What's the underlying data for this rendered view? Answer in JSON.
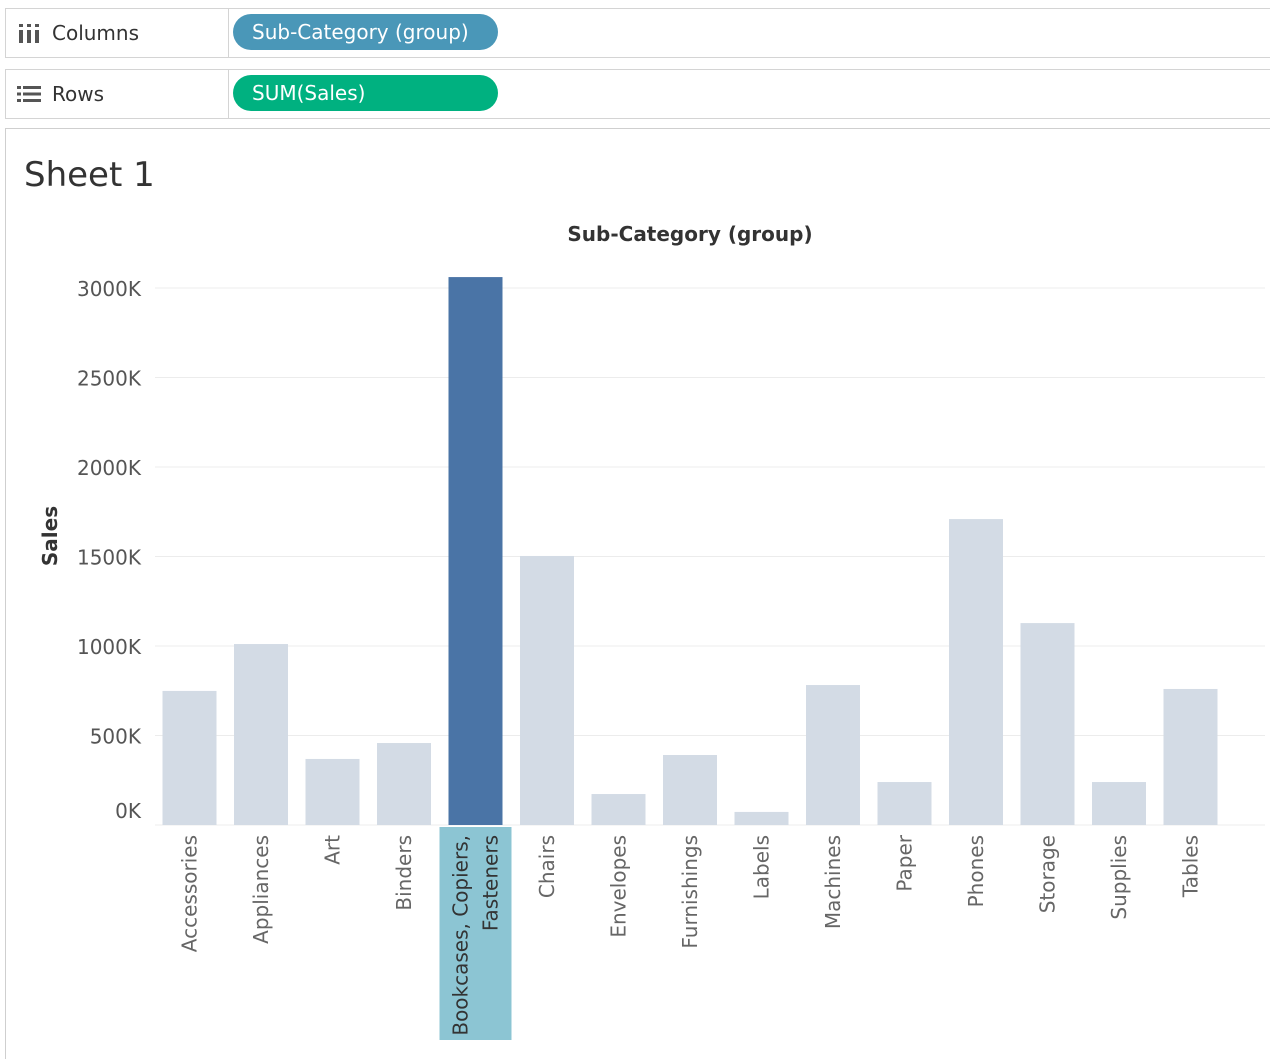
{
  "shelves": {
    "columns": {
      "label": "Columns",
      "icon": "columns-icon",
      "pill": "Sub-Category (group)",
      "pill_color": "#4a97b8"
    },
    "rows": {
      "label": "Rows",
      "icon": "rows-list-icon",
      "pill": "SUM(Sales)",
      "pill_color": "#00b180"
    }
  },
  "sheet": {
    "title": "Sheet 1"
  },
  "colors": {
    "bar": "#d3dbe5",
    "highlight_bar": "#4a74a6",
    "highlight_label_bg": "#8cc5d3",
    "grid": "#ececec"
  },
  "chart_data": {
    "type": "bar",
    "title": "",
    "xlabel": "Sub-Category (group)",
    "ylabel": "Sales",
    "ylim": [
      0,
      3100000
    ],
    "yticks": [
      0,
      500000,
      1000000,
      1500000,
      2000000,
      2500000,
      3000000
    ],
    "ytick_labels": [
      "0K",
      "500K",
      "1000K",
      "1500K",
      "2000K",
      "2500K",
      "3000K"
    ],
    "grid": "horizontal",
    "categories": [
      "Accessories",
      "Appliances",
      "Art",
      "Binders",
      "Bookcases, Copiers, Fasteners",
      "Chairs",
      "Envelopes",
      "Furnishings",
      "Labels",
      "Machines",
      "Paper",
      "Phones",
      "Storage",
      "Supplies",
      "Tables"
    ],
    "category_label_lines": [
      [
        "Accessories"
      ],
      [
        "Appliances"
      ],
      [
        "Art"
      ],
      [
        "Binders"
      ],
      [
        "Bookcases, Copiers,",
        "Fasteners"
      ],
      [
        "Chairs"
      ],
      [
        "Envelopes"
      ],
      [
        "Furnishings"
      ],
      [
        "Labels"
      ],
      [
        "Machines"
      ],
      [
        "Paper"
      ],
      [
        "Phones"
      ],
      [
        "Storage"
      ],
      [
        "Supplies"
      ],
      [
        "Tables"
      ]
    ],
    "values": [
      749000,
      1011000,
      369000,
      458000,
      3061000,
      1503000,
      173000,
      391000,
      73000,
      782000,
      240000,
      1709000,
      1128000,
      240000,
      760000
    ],
    "highlighted": "Bookcases, Copiers, Fasteners"
  }
}
